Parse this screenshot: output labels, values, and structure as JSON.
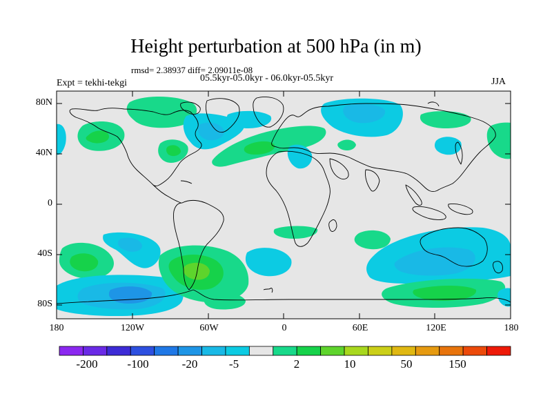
{
  "title": "Height perturbation at 500 hPa (in m)",
  "stats_text": "rmsd= 2.38937 diff= 2.09011e-08",
  "periods_text": "05.5kyr-05.0kyr - 06.0kyr-05.5kyr",
  "experiment_text": "Expt = tekhi-tekgi",
  "season": "JJA",
  "lat_labels": [
    "80N",
    "40N",
    "0",
    "40S",
    "80S"
  ],
  "lon_labels": [
    "180",
    "120W",
    "60W",
    "0",
    "60E",
    "120E",
    "180"
  ],
  "colorbar": {
    "labels": [
      "-200",
      "-100",
      "-20",
      "-5",
      "2",
      "10",
      "50",
      "150"
    ],
    "colors": [
      "#8b28f0",
      "#6a2ae6",
      "#3d2bd6",
      "#2d50e0",
      "#1f78e6",
      "#1e95e6",
      "#19b9e6",
      "#0ccbe3",
      "#e6e6e6",
      "#18d98a",
      "#16d24a",
      "#5ed42c",
      "#a8d81e",
      "#cbcf18",
      "#e0b812",
      "#e69a10",
      "#e8740c",
      "#ec4a0a",
      "#ee1a08"
    ]
  },
  "field_colors": {
    "land_bg": "#e6e6e6",
    "pos_light": "#18d98a",
    "pos_med": "#16d24a",
    "pos_strong": "#5ed42c",
    "neg_light": "#0ccbe3",
    "neg_med": "#19b9e6",
    "neg_strong": "#1e95e6"
  }
}
